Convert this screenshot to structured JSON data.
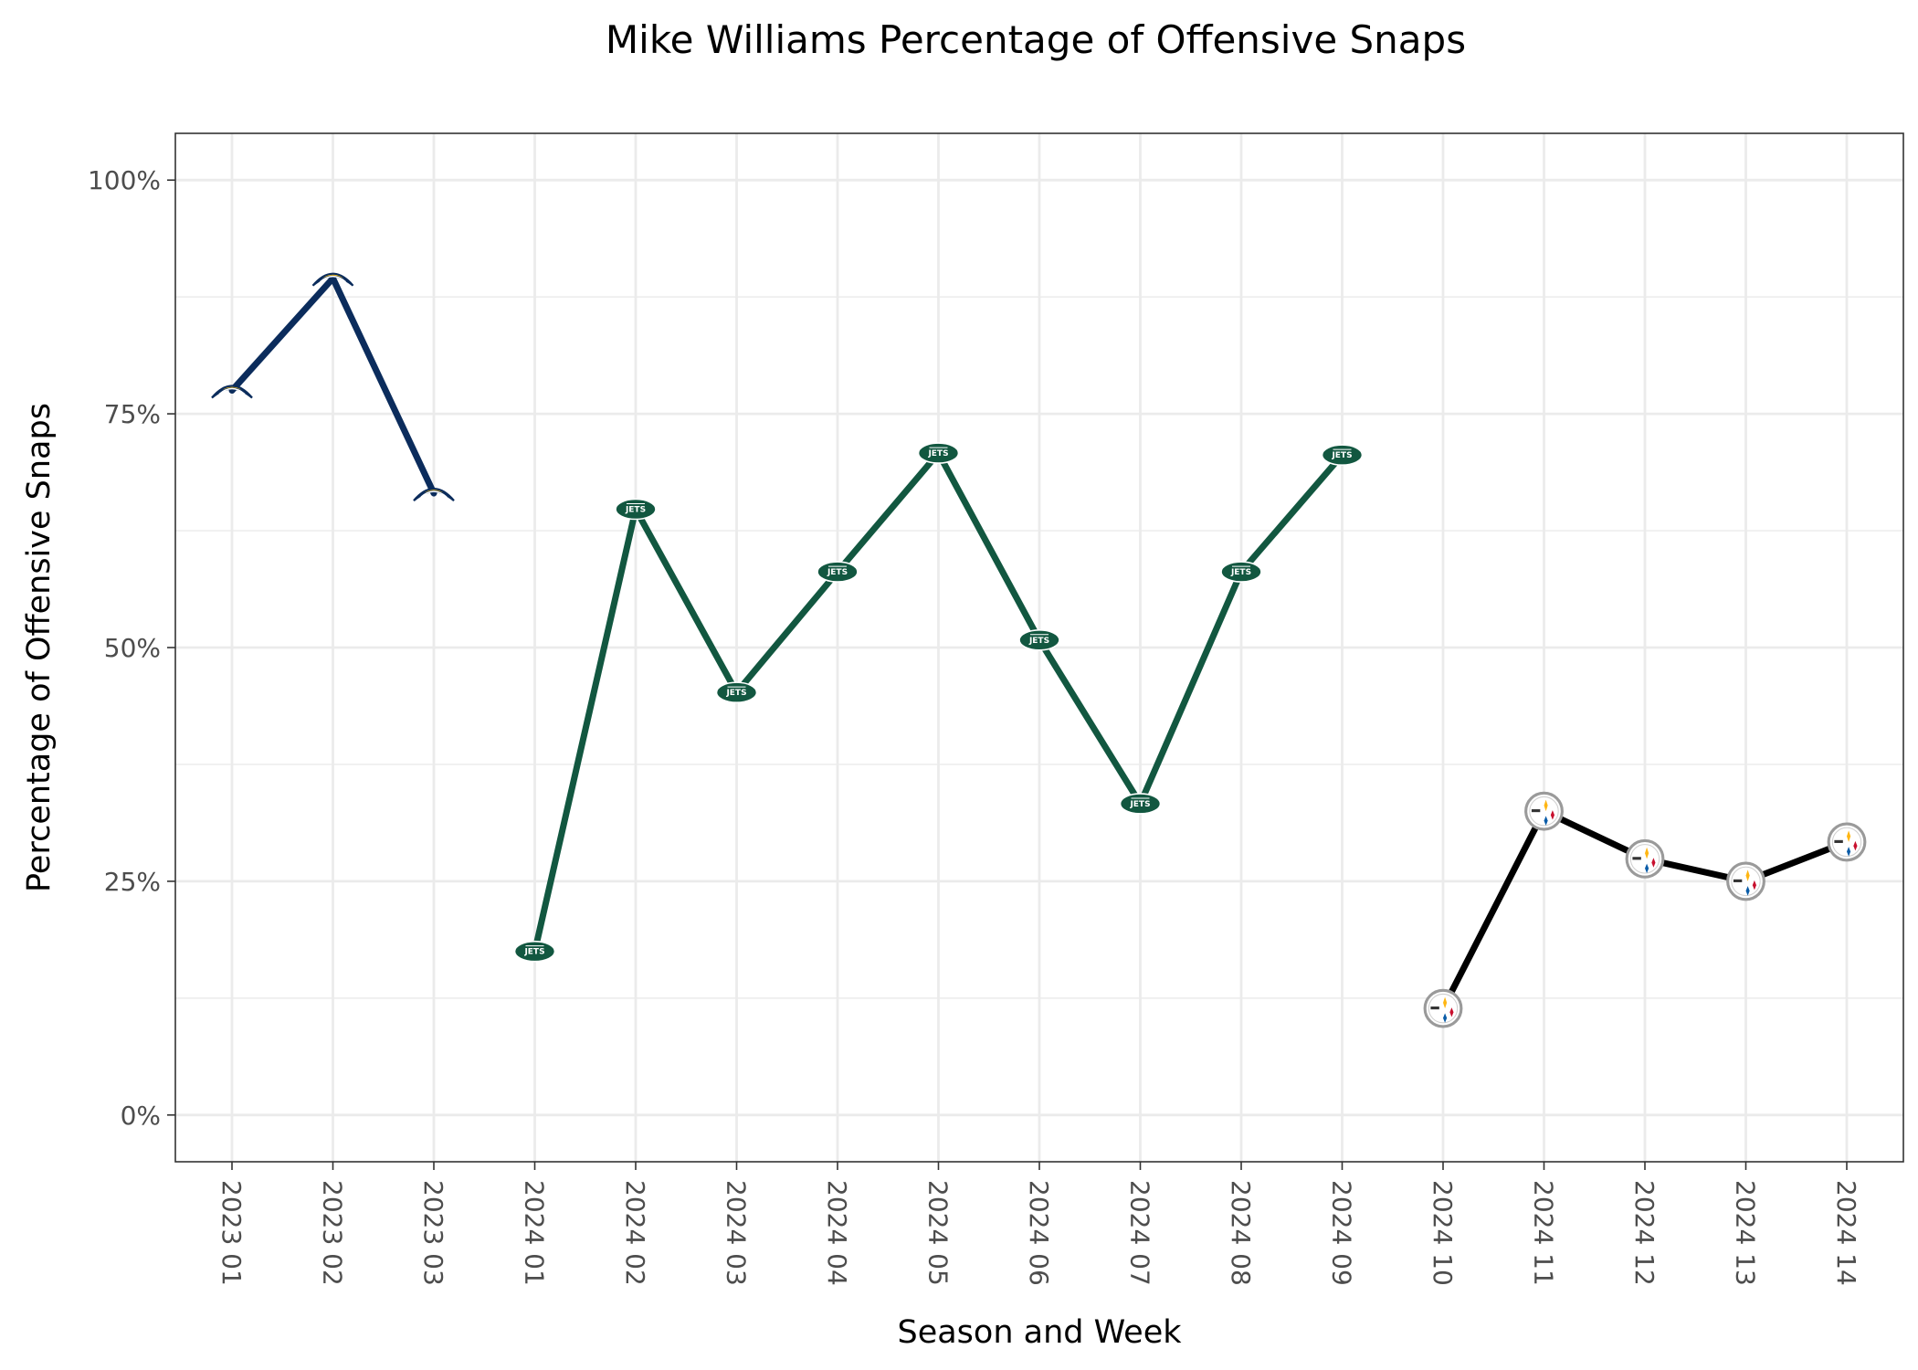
{
  "chart_data": {
    "type": "line",
    "title": "Mike Williams Percentage of Offensive Snaps",
    "xlabel": "Season and Week",
    "ylabel": "Percentage of Offensive Snaps",
    "ylim": [
      -0.05,
      1.05
    ],
    "yticks": [
      0,
      0.25,
      0.5,
      0.75,
      1.0
    ],
    "ytick_labels": [
      "0%",
      "25%",
      "50%",
      "75%",
      "100%"
    ],
    "categories": [
      "2023 01",
      "2023 02",
      "2023 03",
      "2024 01",
      "2024 02",
      "2024 03",
      "2024 04",
      "2024 05",
      "2024 06",
      "2024 07",
      "2024 08",
      "2024 09",
      "2024 10",
      "2024 11",
      "2024 12",
      "2024 13",
      "2024 14"
    ],
    "series": [
      {
        "name": "Chargers",
        "color": "#0b2c5c",
        "marker": "chargers-logo",
        "points": [
          {
            "category": "2023 01",
            "value": 0.775
          },
          {
            "category": "2023 02",
            "value": 0.895
          },
          {
            "category": "2023 03",
            "value": 0.665
          }
        ]
      },
      {
        "name": "Jets",
        "color": "#125740",
        "marker": "jets-logo",
        "points": [
          {
            "category": "2024 01",
            "value": 0.175
          },
          {
            "category": "2024 02",
            "value": 0.648
          },
          {
            "category": "2024 03",
            "value": 0.452
          },
          {
            "category": "2024 04",
            "value": 0.581
          },
          {
            "category": "2024 05",
            "value": 0.708
          },
          {
            "category": "2024 06",
            "value": 0.508
          },
          {
            "category": "2024 07",
            "value": 0.333
          },
          {
            "category": "2024 08",
            "value": 0.581
          },
          {
            "category": "2024 09",
            "value": 0.706
          }
        ]
      },
      {
        "name": "Steelers",
        "color": "#000000",
        "marker": "steelers-logo",
        "points": [
          {
            "category": "2024 10",
            "value": 0.114
          },
          {
            "category": "2024 11",
            "value": 0.325
          },
          {
            "category": "2024 12",
            "value": 0.274
          },
          {
            "category": "2024 13",
            "value": 0.25
          },
          {
            "category": "2024 14",
            "value": 0.292
          }
        ]
      }
    ],
    "legend": "none",
    "grid": true
  }
}
